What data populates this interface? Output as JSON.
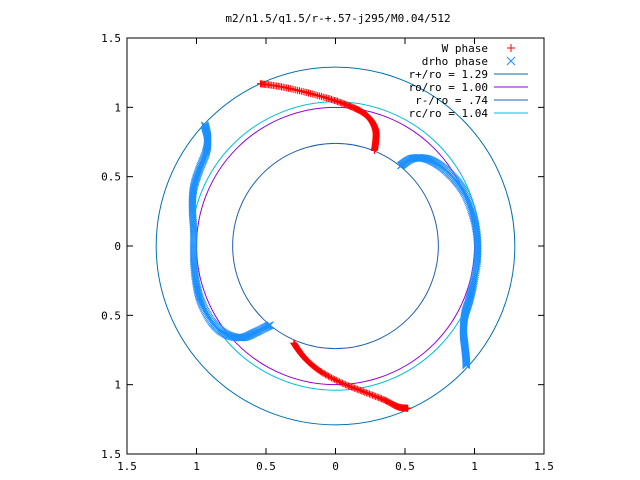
{
  "chart_data": {
    "type": "scatter",
    "title": "m2/n1.5/q1.5/r-+.57-j295/M0.04/512",
    "xlabel": "",
    "ylabel": "",
    "xlim": [
      -1.5,
      1.5
    ],
    "ylim": [
      -1.5,
      1.5
    ],
    "xticks": [
      -1.5,
      -1,
      -0.5,
      0,
      0.5,
      1,
      1.5
    ],
    "yticks": [
      -1.5,
      -1,
      -0.5,
      0,
      0.5,
      1,
      1.5
    ],
    "x_tick_labels": [
      "1.5",
      "1",
      "0.5",
      "0",
      "0.5",
      "1",
      "1.5"
    ],
    "y_tick_labels": [
      "1.5",
      "1",
      "0.5",
      "0",
      "0.5",
      "1",
      "1.5"
    ],
    "grid": false,
    "legend_position": "top-right",
    "circles": [
      {
        "name": "r+/ro = 1.29",
        "radius": 1.29,
        "color": "#0072b2"
      },
      {
        "name": "ro/ro = 1.00",
        "radius": 1.0,
        "color": "#9400d3"
      },
      {
        "name": "r-/ro = .74",
        "radius": 0.74,
        "color": "#1f5fb0"
      },
      {
        "name": "rc/ro = 1.04",
        "radius": 1.04,
        "color": "#00bfd8"
      }
    ],
    "series": [
      {
        "name": "W phase",
        "marker": "plus",
        "color": "#ff0000",
        "curves": [
          [
            [
              -0.54,
              1.17
            ],
            [
              -0.4,
              1.15
            ],
            [
              -0.22,
              1.11
            ],
            [
              -0.04,
              1.06
            ],
            [
              0.1,
              1.01
            ],
            [
              0.2,
              0.96
            ],
            [
              0.26,
              0.9
            ],
            [
              0.29,
              0.83
            ],
            [
              0.29,
              0.76
            ],
            [
              0.28,
              0.69
            ]
          ],
          [
            [
              -0.3,
              -0.7
            ],
            [
              -0.26,
              -0.76
            ],
            [
              -0.2,
              -0.83
            ],
            [
              -0.1,
              -0.91
            ],
            [
              0.05,
              -0.99
            ],
            [
              0.2,
              -1.05
            ],
            [
              0.35,
              -1.11
            ],
            [
              0.45,
              -1.16
            ],
            [
              0.52,
              -1.17
            ]
          ]
        ]
      },
      {
        "name": "drho phase",
        "marker": "cross",
        "color": "#1e90ff",
        "curves": [
          [
            [
              -0.94,
              0.87
            ],
            [
              -0.92,
              0.78
            ],
            [
              -0.93,
              0.68
            ],
            [
              -0.98,
              0.55
            ],
            [
              -1.02,
              0.42
            ],
            [
              -1.03,
              0.28
            ],
            [
              -1.02,
              0.1
            ],
            [
              -1.02,
              -0.1
            ],
            [
              -1.0,
              -0.28
            ],
            [
              -0.96,
              -0.42
            ],
            [
              -0.88,
              -0.56
            ],
            [
              -0.78,
              -0.64
            ],
            [
              -0.67,
              -0.66
            ],
            [
              -0.57,
              -0.62
            ],
            [
              -0.47,
              -0.57
            ]
          ],
          [
            [
              0.47,
              0.58
            ],
            [
              0.55,
              0.63
            ],
            [
              0.65,
              0.63
            ],
            [
              0.75,
              0.58
            ],
            [
              0.85,
              0.49
            ],
            [
              0.93,
              0.38
            ],
            [
              0.99,
              0.22
            ],
            [
              1.02,
              0.06
            ],
            [
              1.02,
              -0.1
            ],
            [
              0.99,
              -0.28
            ],
            [
              0.96,
              -0.4
            ],
            [
              0.93,
              -0.5
            ],
            [
              0.92,
              -0.62
            ],
            [
              0.93,
              -0.72
            ],
            [
              0.94,
              -0.82
            ],
            [
              0.94,
              -0.86
            ]
          ]
        ]
      }
    ]
  }
}
